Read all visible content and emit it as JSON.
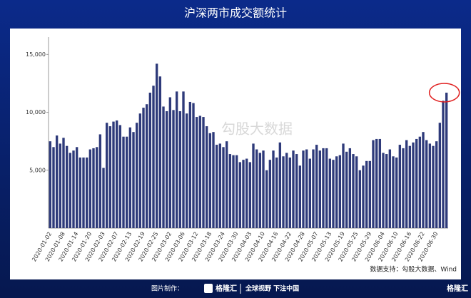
{
  "chart_data": {
    "type": "bar",
    "title": "沪深两市成交额统计",
    "categories": [
      "2020-01-02",
      null,
      null,
      null,
      "2020-01-08",
      null,
      null,
      null,
      "2020-01-14",
      null,
      null,
      null,
      "2020-01-20",
      null,
      null,
      null,
      "2020-02-03",
      null,
      null,
      null,
      "2020-02-07",
      null,
      null,
      null,
      "2020-02-13",
      null,
      null,
      null,
      "2020-02-19",
      null,
      null,
      null,
      "2020-02-25",
      null,
      null,
      null,
      "2020-03-02",
      null,
      null,
      null,
      "2020-03-06",
      null,
      null,
      null,
      "2020-03-12",
      null,
      null,
      null,
      "2020-03-18",
      null,
      null,
      null,
      "2020-03-24",
      null,
      null,
      null,
      "2020-03-30",
      null,
      null,
      null,
      "2020-04-03",
      null,
      null,
      null,
      "2020-04-10",
      null,
      null,
      null,
      "2020-04-16",
      null,
      null,
      null,
      "2020-04-22",
      null,
      null,
      null,
      "2020-04-28",
      null,
      null,
      null,
      "2020-05-07",
      null,
      null,
      null,
      "2020-05-13",
      null,
      null,
      null,
      "2020-05-19",
      null,
      null,
      null,
      "2020-05-25",
      null,
      null,
      null,
      "2020-05-29",
      null,
      null,
      null,
      "2020-06-04",
      null,
      null,
      null,
      "2020-06-10",
      null,
      null,
      null,
      "2020-06-16",
      null,
      null,
      null,
      "2020-06-22",
      null,
      null,
      null,
      "2020-06-30",
      null,
      null,
      null
    ],
    "values": [
      7500,
      7000,
      8000,
      7300,
      7800,
      7100,
      6500,
      6700,
      7000,
      6100,
      6100,
      6100,
      6800,
      6900,
      7000,
      8100,
      5200,
      9100,
      8800,
      9200,
      9300,
      8900,
      7900,
      7900,
      8700,
      8300,
      9100,
      9900,
      10400,
      10700,
      11700,
      12300,
      14200,
      13100,
      10500,
      10100,
      11300,
      10200,
      11800,
      10100,
      11800,
      9900,
      10900,
      10800,
      9600,
      9700,
      9600,
      8800,
      8200,
      8300,
      7200,
      7300,
      7000,
      7500,
      6400,
      6300,
      6300,
      5700,
      5900,
      6000,
      5700,
      7300,
      6800,
      6500,
      6700,
      5000,
      5900,
      6700,
      6100,
      7400,
      6200,
      6500,
      6100,
      6700,
      6400,
      5400,
      6700,
      6800,
      6000,
      6800,
      7200,
      6700,
      6900,
      6900,
      6000,
      5900,
      6200,
      6300,
      7300,
      6600,
      6900,
      6400,
      6200,
      5000,
      5400,
      5800,
      5800,
      7600,
      7700,
      7700,
      6500,
      6400,
      6800,
      6200,
      6100,
      7200,
      6900,
      7600,
      7100,
      7400,
      7700,
      7900,
      8300,
      7600,
      7300,
      7100,
      7500,
      9100,
      11000,
      11700
    ],
    "color": "#2e3a7a",
    "ylim": [
      0,
      16500
    ],
    "yticks": [
      {
        "value": 5000,
        "label": "5,000"
      },
      {
        "value": 10000,
        "label": "10,000"
      },
      {
        "value": 15000,
        "label": "15,000"
      }
    ],
    "grid": false,
    "watermark": "勾股大数据",
    "source": "数据支持：勾股大数据、Wind"
  },
  "footer": {
    "made_by": "图片制作：",
    "brand": "格隆汇",
    "slogan": "全球视野 下注中国",
    "corner_brand": "格隆汇"
  }
}
